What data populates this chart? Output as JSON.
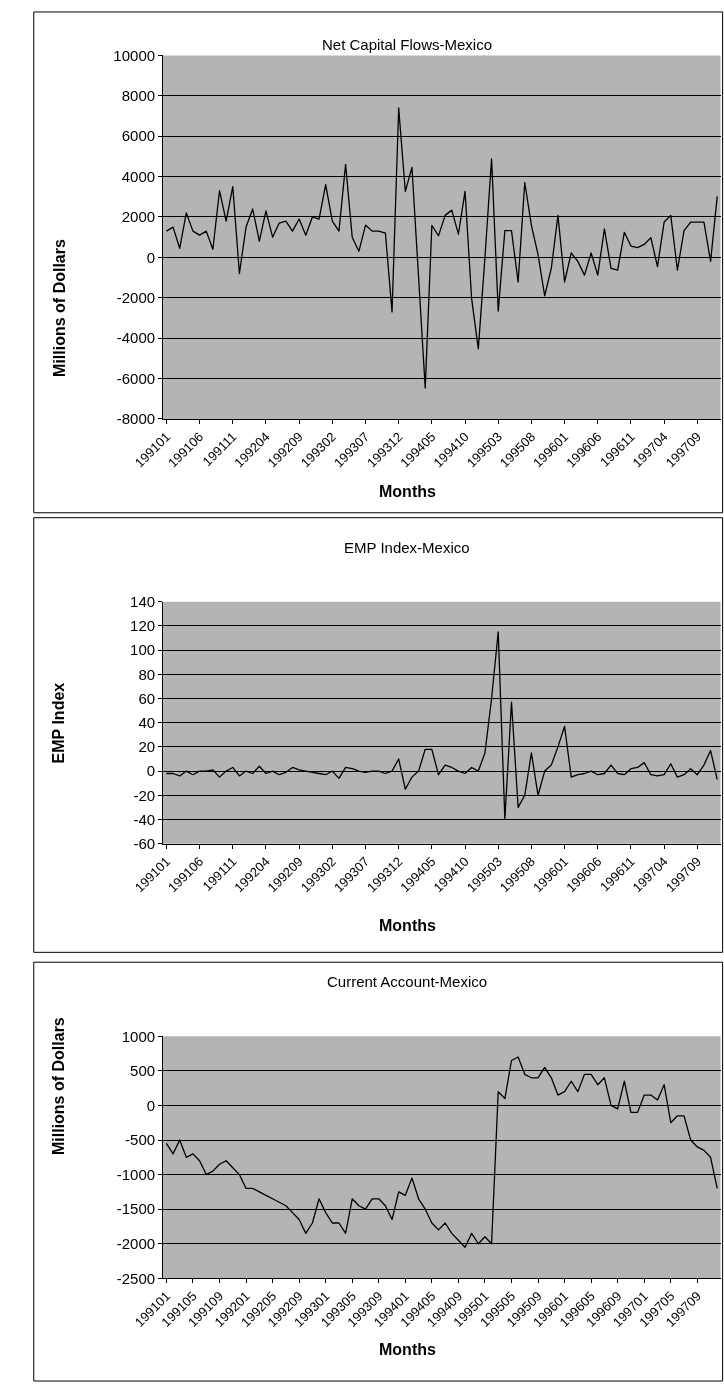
{
  "chart_data": [
    {
      "type": "line",
      "title": "Net Capital Flows-Mexico",
      "xlabel": "Months",
      "ylabel": "Millions of Dollars",
      "categories": [
        "199101",
        null,
        null,
        null,
        null,
        "199106",
        null,
        null,
        null,
        null,
        "199111",
        null,
        null,
        null,
        null,
        "199204",
        null,
        null,
        null,
        null,
        "199209",
        null,
        null,
        null,
        null,
        "199302",
        null,
        null,
        null,
        null,
        "199307",
        null,
        null,
        null,
        null,
        "199312",
        null,
        null,
        null,
        null,
        "199405",
        null,
        null,
        null,
        null,
        "199410",
        null,
        null,
        null,
        null,
        "199503",
        null,
        null,
        null,
        null,
        "199508",
        null,
        null,
        null,
        null,
        "199601",
        null,
        null,
        null,
        null,
        "199606",
        null,
        null,
        null,
        null,
        "199611",
        null,
        null,
        null,
        null,
        "199704",
        null,
        null,
        null,
        null,
        "199709",
        null,
        null,
        null
      ],
      "values": [
        1300,
        1500,
        450,
        2200,
        1300,
        1100,
        1300,
        400,
        3300,
        1800,
        3500,
        -800,
        1500,
        2400,
        800,
        2300,
        1000,
        1700,
        1800,
        1300,
        1900,
        1100,
        2000,
        1900,
        3600,
        1800,
        1300,
        4600,
        1000,
        300,
        1600,
        1300,
        1300,
        1200,
        -2700,
        7400,
        3270,
        4460,
        -1000,
        -6470,
        1580,
        1070,
        2080,
        2340,
        1150,
        3270,
        -2070,
        -4530,
        0,
        4880,
        -2660,
        1320,
        1320,
        -1220,
        3700,
        1580,
        140,
        -1900,
        -540,
        2080,
        -1220,
        220,
        -200,
        -880,
        220,
        -880,
        1410,
        -540,
        -630,
        1240,
        560,
        480,
        640,
        980,
        -460,
        1750,
        2080,
        -630,
        1320,
        1750,
        1750,
        1750,
        -200,
        3020
      ],
      "color": "#000000",
      "ylim": [
        -8000,
        10000
      ],
      "yticks": [
        -8000,
        -6000,
        -4000,
        -2000,
        0,
        2000,
        4000,
        6000,
        8000,
        10000
      ],
      "grid": "y"
    },
    {
      "type": "line",
      "title": "EMP Index-Mexico",
      "xlabel": "Months",
      "ylabel": "EMP Index",
      "categories": [
        "199101",
        null,
        null,
        null,
        null,
        "199106",
        null,
        null,
        null,
        null,
        "199111",
        null,
        null,
        null,
        null,
        "199204",
        null,
        null,
        null,
        null,
        "199209",
        null,
        null,
        null,
        null,
        "199302",
        null,
        null,
        null,
        null,
        "199307",
        null,
        null,
        null,
        null,
        "199312",
        null,
        null,
        null,
        null,
        "199405",
        null,
        null,
        null,
        null,
        "199410",
        null,
        null,
        null,
        null,
        "199503",
        null,
        null,
        null,
        null,
        "199508",
        null,
        null,
        null,
        null,
        "199601",
        null,
        null,
        null,
        null,
        "199606",
        null,
        null,
        null,
        null,
        "199611",
        null,
        null,
        null,
        null,
        "199704",
        null,
        null,
        null,
        null,
        "199709",
        null,
        null,
        null
      ],
      "values": [
        -2,
        -2,
        -4,
        0,
        -3,
        0,
        0,
        1,
        -5,
        0,
        3,
        -4,
        0,
        -2,
        4,
        -2,
        0,
        -3,
        -1,
        3,
        1,
        0,
        -1,
        -2,
        -3,
        0,
        -6,
        3,
        2,
        0,
        -1,
        0,
        0,
        -2,
        0,
        10,
        -15,
        -5,
        0,
        18,
        18,
        -3,
        5,
        3,
        0,
        -2,
        3,
        0,
        15,
        60,
        115,
        -40,
        57,
        -30,
        -20,
        15,
        -20,
        0,
        5,
        20,
        37,
        -5,
        -3,
        -2,
        0,
        -3,
        -2,
        5,
        -2,
        -3,
        2,
        3,
        7,
        -3,
        -4,
        -3,
        6,
        -5,
        -3,
        2,
        -3,
        5,
        17,
        -7
      ],
      "color": "#000000",
      "ylim": [
        -60,
        140
      ],
      "yticks": [
        -60,
        -40,
        -20,
        0,
        20,
        40,
        60,
        80,
        100,
        120,
        140
      ],
      "grid": "y"
    },
    {
      "type": "line",
      "title": "Current Account-Mexico",
      "xlabel": "Months",
      "ylabel": "Millions of Dollars",
      "categories": [
        "199101",
        null,
        null,
        null,
        "199105",
        null,
        null,
        null,
        "199109",
        null,
        null,
        null,
        "199201",
        null,
        null,
        null,
        "199205",
        null,
        null,
        null,
        "199209",
        null,
        null,
        null,
        "199301",
        null,
        null,
        null,
        "199305",
        null,
        null,
        null,
        "199309",
        null,
        null,
        null,
        "199401",
        null,
        null,
        null,
        "199405",
        null,
        null,
        null,
        "199409",
        null,
        null,
        null,
        "199501",
        null,
        null,
        null,
        "199505",
        null,
        null,
        null,
        "199509",
        null,
        null,
        null,
        "199601",
        null,
        null,
        null,
        "199605",
        null,
        null,
        null,
        "199609",
        null,
        null,
        null,
        "199701",
        null,
        null,
        null,
        "199705",
        null,
        null,
        null,
        "199709",
        null,
        null,
        null
      ],
      "values": [
        -550,
        -700,
        -500,
        -750,
        -700,
        -800,
        -1000,
        -950,
        -850,
        -800,
        -900,
        -1000,
        -1200,
        -1200,
        -1250,
        -1300,
        -1350,
        -1400,
        -1450,
        -1550,
        -1650,
        -1850,
        -1700,
        -1350,
        -1550,
        -1700,
        -1700,
        -1850,
        -1350,
        -1450,
        -1500,
        -1350,
        -1350,
        -1450,
        -1650,
        -1250,
        -1300,
        -1050,
        -1350,
        -1500,
        -1700,
        -1800,
        -1700,
        -1850,
        -1950,
        -2050,
        -1850,
        -2000,
        -1900,
        -2000,
        200,
        100,
        650,
        700,
        450,
        400,
        400,
        550,
        400,
        150,
        200,
        350,
        200,
        450,
        450,
        300,
        400,
        0,
        -50,
        350,
        -100,
        -100,
        150,
        150,
        80,
        300,
        -250,
        -150,
        -150,
        -500,
        -600,
        -650,
        -750,
        -1200
      ],
      "color": "#000000",
      "ylim": [
        -2500,
        1000
      ],
      "yticks": [
        -2500,
        -2000,
        -1500,
        -1000,
        -500,
        0,
        500,
        1000
      ],
      "grid": "y"
    }
  ]
}
